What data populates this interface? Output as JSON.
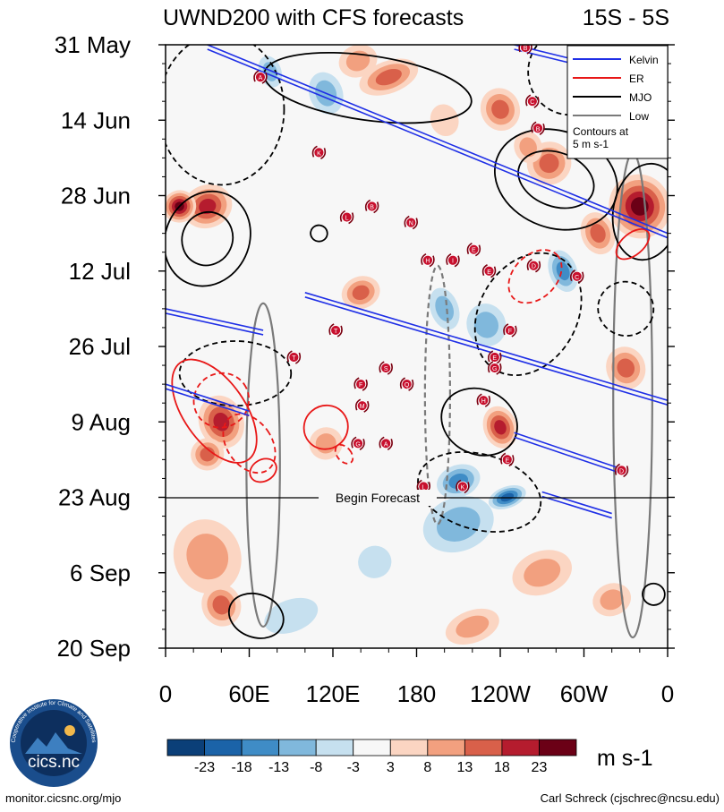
{
  "chart_data": {
    "type": "heatmap",
    "title": "UWND200 with CFS forecasts",
    "region_label": "15S - 5S",
    "y_axis": {
      "labels": [
        "31 May",
        "14 Jun",
        "28 Jun",
        "12 Jul",
        "26 Jul",
        "9 Aug",
        "23 Aug",
        "6 Sep",
        "20 Sep"
      ],
      "range_days": [
        0,
        112
      ]
    },
    "x_axis": {
      "labels": [
        "0",
        "60E",
        "120E",
        "180",
        "120W",
        "60W",
        "0"
      ],
      "range_lon": [
        0,
        360
      ]
    },
    "forecast_marker": {
      "label": "Begin Forecast",
      "date": "23 Aug",
      "day": 84
    },
    "legend": {
      "items": [
        {
          "name": "Kelvin",
          "color": "#1f2fe6"
        },
        {
          "name": "ER",
          "color": "#e81818"
        },
        {
          "name": "MJO",
          "color": "#000000"
        },
        {
          "name": "Low",
          "color": "#7a7a7a"
        }
      ],
      "note": "Contours at 5 m s-1"
    },
    "colorbar": {
      "labels": [
        "-23",
        "-18",
        "-13",
        "-8",
        "-3",
        "3",
        "8",
        "13",
        "18",
        "23"
      ],
      "colors": [
        "#0b3f78",
        "#1b63a8",
        "#3f8cc6",
        "#80b8dc",
        "#c6e0ef",
        "#f7f7f7",
        "#fbd5c2",
        "#f2a07f",
        "#d9604a",
        "#b51c2e",
        "#6b0016"
      ],
      "units": "m s-1"
    },
    "anomaly_patches": [
      {
        "lon": 30,
        "day": 30,
        "rlon": 18,
        "rday": 4,
        "level": 4
      },
      {
        "lon": 10,
        "day": 30,
        "rlon": 12,
        "rday": 3,
        "level": 5
      },
      {
        "lon": 75,
        "day": 5,
        "rlon": 8,
        "rday": 3,
        "level": -2
      },
      {
        "lon": 115,
        "day": 9,
        "rlon": 12,
        "rday": 4,
        "level": -2
      },
      {
        "lon": 138,
        "day": 3,
        "rlon": 14,
        "rday": 3,
        "level": 2
      },
      {
        "lon": 160,
        "day": 6,
        "rlon": 22,
        "rday": 3,
        "level": 3
      },
      {
        "lon": 200,
        "day": 14,
        "rlon": 10,
        "rday": 3,
        "level": 1
      },
      {
        "lon": 240,
        "day": 12,
        "rlon": 14,
        "rday": 4,
        "level": 3
      },
      {
        "lon": 275,
        "day": 22,
        "rlon": 16,
        "rday": 4,
        "level": 3
      },
      {
        "lon": 260,
        "day": 19,
        "rlon": 10,
        "rday": 3,
        "level": 2
      },
      {
        "lon": 340,
        "day": 30,
        "rlon": 22,
        "rday": 6,
        "level": 5
      },
      {
        "lon": 310,
        "day": 35,
        "rlon": 12,
        "rday": 4,
        "level": 3
      },
      {
        "lon": 285,
        "day": 42,
        "rlon": 10,
        "rday": 4,
        "level": -3
      },
      {
        "lon": 140,
        "day": 46,
        "rlon": 14,
        "rday": 3,
        "level": 3
      },
      {
        "lon": 200,
        "day": 49,
        "rlon": 10,
        "rday": 4,
        "level": -2
      },
      {
        "lon": 230,
        "day": 52,
        "rlon": 14,
        "rday": 4,
        "level": -2
      },
      {
        "lon": 330,
        "day": 60,
        "rlon": 14,
        "rday": 4,
        "level": 3
      },
      {
        "lon": 40,
        "day": 70,
        "rlon": 16,
        "rday": 5,
        "level": 4
      },
      {
        "lon": 30,
        "day": 76,
        "rlon": 12,
        "rday": 3,
        "level": 3
      },
      {
        "lon": 115,
        "day": 74,
        "rlon": 12,
        "rday": 3,
        "level": 2
      },
      {
        "lon": 240,
        "day": 71,
        "rlon": 12,
        "rday": 4,
        "level": 4
      },
      {
        "lon": 210,
        "day": 81,
        "rlon": 16,
        "rday": 3,
        "level": -3
      },
      {
        "lon": 245,
        "day": 84,
        "rlon": 14,
        "rday": 2,
        "level": -4
      },
      {
        "lon": 210,
        "day": 89,
        "rlon": 26,
        "rday": 5,
        "level": -2
      },
      {
        "lon": 30,
        "day": 95,
        "rlon": 24,
        "rday": 7,
        "level": 2
      },
      {
        "lon": 40,
        "day": 104,
        "rlon": 14,
        "rday": 4,
        "level": 3
      },
      {
        "lon": 150,
        "day": 96,
        "rlon": 12,
        "rday": 3,
        "level": -1
      },
      {
        "lon": 270,
        "day": 98,
        "rlon": 22,
        "rday": 4,
        "level": 2
      },
      {
        "lon": 320,
        "day": 103,
        "rlon": 14,
        "rday": 3,
        "level": 2
      },
      {
        "lon": 90,
        "day": 106,
        "rlon": 20,
        "rday": 3,
        "level": -1
      },
      {
        "lon": 220,
        "day": 108,
        "rlon": 20,
        "rday": 3,
        "level": 2
      }
    ],
    "kelvin_lines": [
      {
        "lon_start": 30,
        "day_start": 0,
        "lon_end": 360,
        "day_end": 35
      },
      {
        "lon_start": 250,
        "day_start": 0,
        "lon_end": 360,
        "day_end": 7
      },
      {
        "lon_start": 100,
        "day_start": 46,
        "lon_end": 360,
        "day_end": 66
      },
      {
        "lon_start": 0,
        "day_start": 63,
        "lon_end": 60,
        "day_end": 68
      },
      {
        "lon_start": 250,
        "day_start": 72,
        "lon_end": 330,
        "day_end": 79
      },
      {
        "lon_start": 0,
        "day_start": 49,
        "lon_end": 70,
        "day_end": 53
      },
      {
        "lon_start": 270,
        "day_start": 83,
        "lon_end": 320,
        "day_end": 87
      }
    ],
    "mjo_contours": [
      {
        "lon": 30,
        "day": 36,
        "rlon": 30,
        "rday": 9,
        "rot": 25,
        "dash": false
      },
      {
        "lon": 30,
        "day": 36,
        "rlon": 18,
        "rday": 5,
        "rot": 25,
        "dash": false
      },
      {
        "lon": 145,
        "day": 8,
        "rlon": 75,
        "rday": 6,
        "rot": 8,
        "dash": false
      },
      {
        "lon": 280,
        "day": 25,
        "rlon": 45,
        "rday": 9,
        "rot": 20,
        "dash": false
      },
      {
        "lon": 280,
        "day": 25,
        "rlon": 28,
        "rday": 5,
        "rot": 20,
        "dash": false
      },
      {
        "lon": 345,
        "day": 31,
        "rlon": 24,
        "rday": 9,
        "rot": 10,
        "dash": false
      },
      {
        "lon": 225,
        "day": 70,
        "rlon": 28,
        "rday": 6,
        "rot": 25,
        "dash": false
      },
      {
        "lon": 65,
        "day": 106,
        "rlon": 20,
        "rday": 4,
        "rot": 20,
        "dash": false
      },
      {
        "lon": 350,
        "day": 102,
        "rlon": 8,
        "rday": 2,
        "rot": 15,
        "dash": false
      },
      {
        "lon": 110,
        "day": 35,
        "rlon": 6,
        "rday": 1.5,
        "rot": 10,
        "dash": false
      },
      {
        "lon": 40,
        "day": 12,
        "rlon": 45,
        "rday": 14,
        "rot": 0,
        "dash": true
      },
      {
        "lon": 290,
        "day": 5,
        "rlon": 30,
        "rday": 8,
        "rot": 5,
        "dash": true
      },
      {
        "lon": 260,
        "day": 50,
        "rlon": 35,
        "rday": 12,
        "rot": 30,
        "dash": true
      },
      {
        "lon": 50,
        "day": 61,
        "rlon": 40,
        "rday": 6,
        "rot": 0,
        "dash": true
      },
      {
        "lon": 225,
        "day": 83,
        "rlon": 45,
        "rday": 7,
        "rot": 15,
        "dash": true
      },
      {
        "lon": 330,
        "day": 49,
        "rlon": 20,
        "rday": 5,
        "rot": 20,
        "dash": true
      }
    ],
    "er_contours": [
      {
        "lon": 35,
        "day": 68,
        "rlon": 22,
        "rday": 11,
        "rot": -35
      },
      {
        "lon": 40,
        "day": 66,
        "rlon": 20,
        "rday": 5,
        "rot": -35,
        "dash": true
      },
      {
        "lon": 60,
        "day": 74,
        "rlon": 16,
        "rday": 6,
        "rot": -35,
        "dash": true
      },
      {
        "lon": 70,
        "day": 79,
        "rlon": 10,
        "rday": 2,
        "rot": -30
      },
      {
        "lon": 115,
        "day": 71,
        "rlon": 16,
        "rday": 4,
        "rot": -40
      },
      {
        "lon": 128,
        "day": 76,
        "rlon": 5,
        "rday": 2,
        "rot": -40,
        "dash": true
      },
      {
        "lon": 265,
        "day": 43,
        "rlon": 22,
        "rday": 4,
        "rot": -45,
        "dash": true
      },
      {
        "lon": 335,
        "day": 37,
        "rlon": 14,
        "rday": 2,
        "rot": -40
      }
    ],
    "low_contours": [
      {
        "lon": 70,
        "day": 78,
        "rlon": 12,
        "rday": 30
      },
      {
        "lon": 195,
        "day": 65,
        "rlon": 9,
        "rday": 24,
        "dash": true
      },
      {
        "lon": 335,
        "day": 65,
        "rlon": 14,
        "rday": 45
      }
    ],
    "storm_markers": [
      {
        "label": "A",
        "lon": 68,
        "day": 6
      },
      {
        "label": "B",
        "lon": 258,
        "day": 0.5
      },
      {
        "label": "C",
        "lon": 263,
        "day": 10.5
      },
      {
        "label": "B",
        "lon": 267,
        "day": 15.5
      },
      {
        "label": "K",
        "lon": 110,
        "day": 20
      },
      {
        "lon": 148,
        "day": 30,
        "label": "B"
      },
      {
        "lon": 130,
        "day": 32,
        "label": "L"
      },
      {
        "lon": 176,
        "day": 33,
        "label": "N"
      },
      {
        "lon": 221,
        "day": 38,
        "label": "E"
      },
      {
        "lon": 188,
        "day": 40,
        "label": "H"
      },
      {
        "lon": 206,
        "day": 40,
        "label": "I"
      },
      {
        "lon": 232,
        "day": 42,
        "label": "E"
      },
      {
        "lon": 264,
        "day": 41,
        "label": "D"
      },
      {
        "lon": 295,
        "day": 43,
        "label": "C"
      },
      {
        "lon": 122,
        "day": 53,
        "label": "T"
      },
      {
        "lon": 247,
        "day": 53,
        "label": "F"
      },
      {
        "lon": 92,
        "day": 58,
        "label": "T"
      },
      {
        "lon": 236,
        "day": 58,
        "label": "E"
      },
      {
        "lon": 158,
        "day": 60,
        "label": "S"
      },
      {
        "lon": 236,
        "day": 60,
        "label": "G"
      },
      {
        "lon": 140,
        "day": 63,
        "label": "F"
      },
      {
        "lon": 173,
        "day": 63,
        "label": "Q"
      },
      {
        "lon": 141,
        "day": 67,
        "label": "M"
      },
      {
        "lon": 228,
        "day": 66,
        "label": "H"
      },
      {
        "lon": 138,
        "day": 74,
        "label": "G"
      },
      {
        "lon": 158,
        "day": 74,
        "label": "A"
      },
      {
        "lon": 245,
        "day": 77,
        "label": "E"
      },
      {
        "lon": 327,
        "day": 79,
        "label": "D"
      },
      {
        "lon": 185,
        "day": 82,
        "label": "L"
      },
      {
        "lon": 213,
        "day": 82,
        "label": "K"
      }
    ]
  },
  "footer": {
    "logo_text": "cics.nc",
    "logo_ring_text": "Cooperative Institute for Climate and Satellites",
    "url": "monitor.cicsnc.org/mjo",
    "credit": "Carl Schreck (cjschrec@ncsu.edu)"
  }
}
